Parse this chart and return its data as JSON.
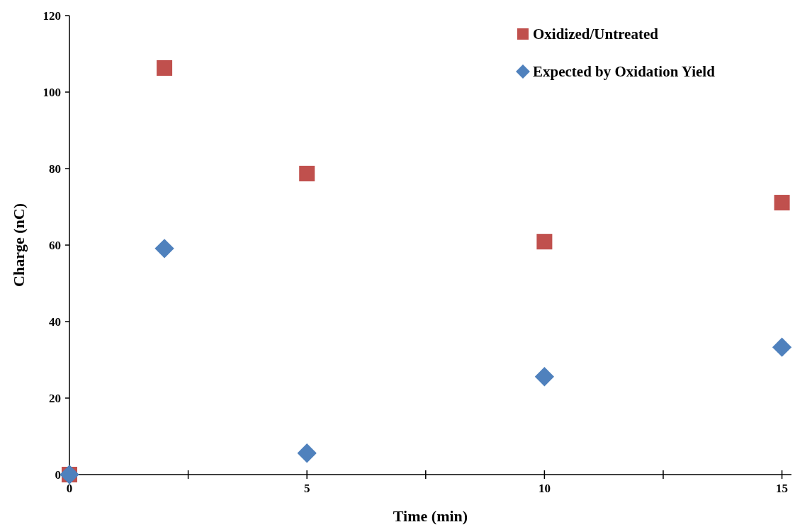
{
  "chart_data": {
    "type": "scatter",
    "xlabel": "Time (min)",
    "ylabel": "Charge (nC)",
    "xlim": [
      0,
      15.2
    ],
    "xticks": [
      0,
      {
        "value": 2.5,
        "label": null
      },
      5,
      {
        "value": 7.5,
        "label": null
      },
      10,
      {
        "value": 12.5,
        "label": null
      },
      15
    ],
    "ylim": [
      0,
      120
    ],
    "yticks": [
      0,
      20,
      40,
      60,
      80,
      100,
      120
    ],
    "grid": false,
    "legend": "top right",
    "series": [
      {
        "name": "Oxidized/Untreated",
        "color": "#c0504d",
        "marker": "square",
        "x": [
          0,
          2,
          5,
          10,
          15
        ],
        "values": [
          0,
          106.3,
          78.7,
          60.9,
          71.1
        ]
      },
      {
        "name": "Expected by Oxidation Yield",
        "color": "#4f81bd",
        "marker": "diamond",
        "x": [
          0,
          2,
          5,
          10,
          15
        ],
        "values": [
          0,
          59.1,
          5.6,
          25.6,
          33.3
        ]
      }
    ]
  }
}
